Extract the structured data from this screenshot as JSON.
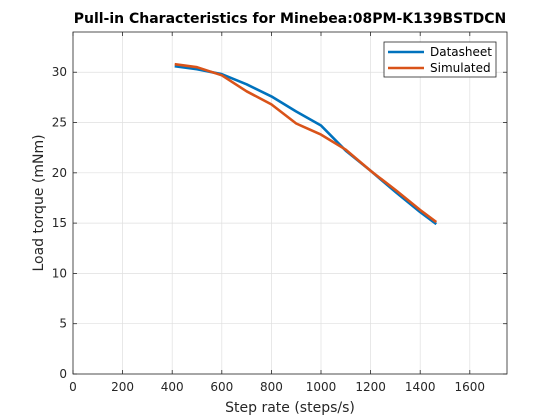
{
  "chart_data": {
    "type": "line",
    "title": "Pull-in Characteristics for Minebea:08PM-K139BSTDCN",
    "xlabel": "Step rate (steps/s)",
    "ylabel": "Load torque (mNm)",
    "xlim": [
      0,
      1750
    ],
    "ylim": [
      0,
      34
    ],
    "xticks": [
      0,
      200,
      400,
      600,
      800,
      1000,
      1200,
      1400,
      1600
    ],
    "yticks": [
      0,
      5,
      10,
      15,
      20,
      25,
      30
    ],
    "grid": true,
    "legend_position": "top-right",
    "series": [
      {
        "name": "Datasheet",
        "color": "#0072BD",
        "x": [
          410,
          500,
          600,
          700,
          800,
          900,
          1000,
          1100,
          1200,
          1300,
          1400,
          1465
        ],
        "y": [
          30.6,
          30.3,
          29.8,
          28.8,
          27.6,
          26.1,
          24.7,
          22.2,
          20.2,
          18.1,
          16.1,
          14.9
        ]
      },
      {
        "name": "Simulated",
        "color": "#D95319",
        "x": [
          410,
          500,
          600,
          700,
          800,
          900,
          1000,
          1100,
          1200,
          1300,
          1400,
          1465
        ],
        "y": [
          30.8,
          30.5,
          29.7,
          28.1,
          26.8,
          24.9,
          23.8,
          22.3,
          20.2,
          18.3,
          16.3,
          15.1
        ]
      }
    ]
  }
}
